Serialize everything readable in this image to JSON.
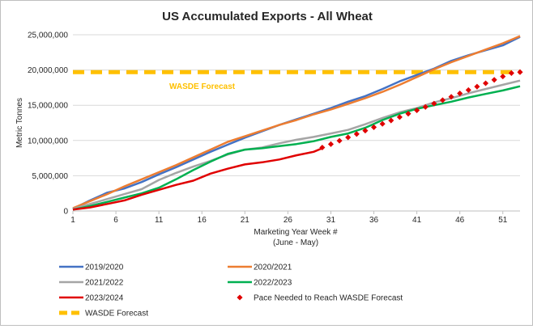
{
  "chart_data": {
    "type": "line",
    "title": "US Accumulated Exports - All Wheat",
    "xlabel": "Marketing Year Week #",
    "xlabel_sub": "(June - May)",
    "ylabel": "Metric Tonnes",
    "xlim": [
      1,
      53
    ],
    "ylim": [
      0,
      25000000
    ],
    "x_ticks": [
      1,
      6,
      11,
      16,
      21,
      26,
      31,
      36,
      41,
      46,
      51
    ],
    "y_ticks": [
      0,
      5000000,
      10000000,
      15000000,
      20000000,
      25000000
    ],
    "y_tick_labels": [
      "0",
      "5,000,000",
      "10,000,000",
      "15,000,000",
      "20,000,000",
      "25,000,000"
    ],
    "grid": "horizontal",
    "legend_position": "bottom",
    "wasde": {
      "name": "WASDE Forecast",
      "label": "WASDE Forecast",
      "value": 19700000,
      "color": "#FFC000"
    },
    "series": [
      {
        "name": "2019/2020",
        "color": "#4472C4",
        "x": [
          1,
          3,
          5,
          7,
          9,
          11,
          13,
          15,
          17,
          19,
          21,
          23,
          25,
          27,
          29,
          31,
          33,
          35,
          37,
          39,
          41,
          43,
          45,
          47,
          49,
          51,
          53
        ],
        "values": [
          300000,
          1500000,
          2600000,
          3200000,
          4100000,
          5200000,
          6200000,
          7300000,
          8400000,
          9400000,
          10400000,
          11300000,
          12200000,
          13000000,
          13800000,
          14600000,
          15500000,
          16300000,
          17300000,
          18400000,
          19300000,
          20200000,
          21300000,
          22100000,
          22800000,
          23500000,
          24700000
        ]
      },
      {
        "name": "2020/2021",
        "color": "#ED7D31",
        "x": [
          1,
          3,
          5,
          7,
          9,
          11,
          13,
          15,
          17,
          19,
          21,
          23,
          25,
          27,
          29,
          31,
          33,
          35,
          37,
          39,
          41,
          43,
          45,
          47,
          49,
          51,
          53
        ],
        "values": [
          400000,
          1400000,
          2400000,
          3500000,
          4500000,
          5500000,
          6500000,
          7600000,
          8700000,
          9800000,
          10600000,
          11400000,
          12200000,
          12900000,
          13700000,
          14400000,
          15200000,
          16000000,
          16900000,
          17900000,
          19000000,
          20100000,
          21100000,
          22000000,
          22900000,
          23800000,
          24800000
        ]
      },
      {
        "name": "2021/2022",
        "color": "#A5A5A5",
        "x": [
          1,
          3,
          5,
          7,
          9,
          11,
          13,
          15,
          17,
          19,
          21,
          23,
          25,
          27,
          29,
          31,
          33,
          35,
          37,
          39,
          41,
          43,
          45,
          47,
          49,
          51,
          53
        ],
        "values": [
          300000,
          1000000,
          1700000,
          2400000,
          3100000,
          4400000,
          5400000,
          6300000,
          7100000,
          8000000,
          8700000,
          9000000,
          9600000,
          10100000,
          10500000,
          11000000,
          11500000,
          12300000,
          13200000,
          14000000,
          14600000,
          15400000,
          16000000,
          16700000,
          17300000,
          17900000,
          18500000
        ]
      },
      {
        "name": "2022/2023",
        "color": "#00B050",
        "x": [
          1,
          3,
          5,
          7,
          9,
          11,
          13,
          15,
          17,
          19,
          21,
          23,
          25,
          27,
          29,
          31,
          33,
          35,
          37,
          39,
          41,
          43,
          45,
          47,
          49,
          51,
          53
        ],
        "values": [
          200000,
          700000,
          1300000,
          1900000,
          2500000,
          3300000,
          4500000,
          5800000,
          7000000,
          8100000,
          8700000,
          8900000,
          9200000,
          9500000,
          9900000,
          10500000,
          11000000,
          11800000,
          12900000,
          13800000,
          14500000,
          15000000,
          15500000,
          16100000,
          16600000,
          17100000,
          17700000
        ]
      },
      {
        "name": "2023/2024",
        "color": "#E00000",
        "x": [
          1,
          3,
          5,
          7,
          9,
          11,
          13,
          15,
          17,
          19,
          21,
          23,
          25,
          27,
          29,
          30
        ],
        "values": [
          200000,
          500000,
          1000000,
          1500000,
          2300000,
          3000000,
          3700000,
          4300000,
          5300000,
          6000000,
          6600000,
          6900000,
          7300000,
          7900000,
          8400000,
          8900000
        ]
      },
      {
        "name": "Pace Needed to Reach WASDE Forecast",
        "color": "#E00000",
        "style": "dotted",
        "x": [
          30,
          31,
          32,
          33,
          34,
          35,
          36,
          37,
          38,
          39,
          40,
          41,
          42,
          43,
          44,
          45,
          46,
          47,
          48,
          49,
          50,
          51,
          52,
          53
        ],
        "values": [
          9000000,
          9480000,
          9960000,
          10440000,
          10920000,
          11400000,
          11880000,
          12360000,
          12840000,
          13320000,
          13800000,
          14280000,
          14760000,
          15240000,
          15720000,
          16200000,
          16680000,
          17160000,
          17640000,
          18120000,
          18600000,
          19080000,
          19560000,
          19700000
        ]
      }
    ],
    "legend": [
      "2019/2020",
      "2020/2021",
      "2021/2022",
      "2022/2023",
      "2023/2024",
      "Pace Needed to Reach WASDE Forecast",
      "WASDE Forecast"
    ]
  }
}
